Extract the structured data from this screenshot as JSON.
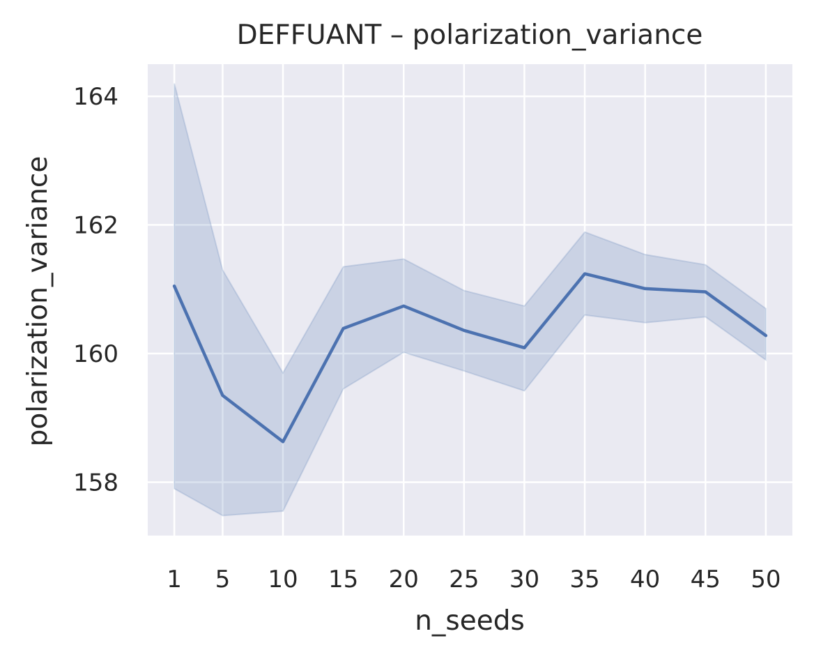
{
  "chart_data": {
    "type": "line",
    "title": "DEFFUANT – polarization_variance",
    "xlabel": "n_seeds",
    "ylabel": "polarization_variance",
    "x": [
      1,
      5,
      10,
      15,
      20,
      25,
      30,
      35,
      40,
      45,
      50
    ],
    "x_tick_labels": [
      "1",
      "5",
      "10",
      "15",
      "20",
      "25",
      "30",
      "35",
      "40",
      "45",
      "50"
    ],
    "y_ticks": [
      158,
      160,
      162,
      164
    ],
    "y_tick_labels": [
      "158",
      "160",
      "162",
      "164"
    ],
    "xlim": [
      -1.2,
      52.2
    ],
    "ylim": [
      157.17,
      164.5
    ],
    "grid": true,
    "series": [
      {
        "values": [
          161.05,
          159.35,
          158.63,
          160.39,
          160.74,
          160.36,
          160.09,
          161.24,
          161.01,
          160.96,
          160.28
        ],
        "ci_upper": [
          164.2,
          161.3,
          159.7,
          161.35,
          161.47,
          160.98,
          160.74,
          161.89,
          161.54,
          161.38,
          160.7
        ],
        "ci_lower": [
          157.9,
          157.48,
          157.55,
          159.45,
          160.02,
          159.73,
          159.42,
          160.6,
          160.48,
          160.57,
          159.9
        ],
        "color": "#4c72b0"
      }
    ],
    "colors": {
      "axes_background": "#eaeaf2",
      "grid": "#ffffff",
      "text": "#262626",
      "band": "#4c72b0"
    }
  }
}
